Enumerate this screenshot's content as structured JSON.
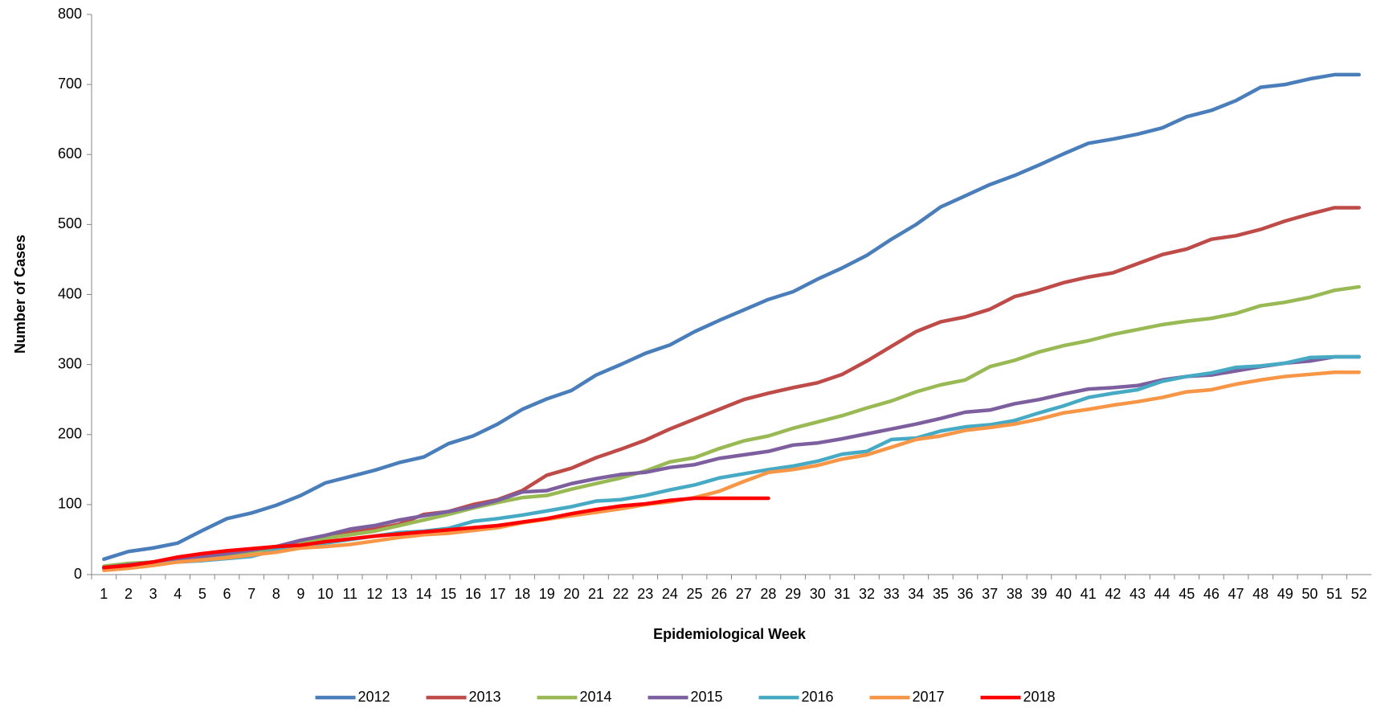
{
  "chart_data": {
    "type": "line",
    "x_label": "Epidemiological Week",
    "y_label": "Number of Cases",
    "categories": [
      "1",
      "2",
      "3",
      "4",
      "5",
      "6",
      "7",
      "8",
      "9",
      "10",
      "11",
      "12",
      "13",
      "14",
      "15",
      "16",
      "17",
      "18",
      "19",
      "20",
      "21",
      "22",
      "23",
      "24",
      "25",
      "26",
      "27",
      "28",
      "29",
      "30",
      "31",
      "32",
      "33",
      "34",
      "35",
      "36",
      "37",
      "38",
      "39",
      "40",
      "41",
      "42",
      "43",
      "44",
      "45",
      "46",
      "47",
      "48",
      "49",
      "50",
      "51",
      "52"
    ],
    "ylim": [
      0,
      800
    ],
    "yticks": [
      0,
      100,
      200,
      300,
      400,
      500,
      600,
      700,
      800
    ],
    "grid": false,
    "legend": "bottom",
    "series": [
      {
        "name": "2012",
        "color": "#4a7ebb",
        "values": [
          22,
          33,
          38,
          45,
          63,
          80,
          88,
          99,
          113,
          131,
          140,
          149,
          160,
          168,
          187,
          198,
          215,
          236,
          251,
          263,
          285,
          300,
          316,
          328,
          347,
          363,
          378,
          393,
          404,
          422,
          438,
          456,
          479,
          500,
          525,
          541,
          557,
          570,
          585,
          601,
          616,
          622,
          629,
          638,
          654,
          663,
          677,
          696,
          700,
          708,
          714,
          714
        ]
      },
      {
        "name": "2013",
        "color": "#be4b48",
        "values": [
          10,
          14,
          18,
          22,
          26,
          30,
          35,
          40,
          47,
          54,
          60,
          65,
          72,
          86,
          90,
          100,
          107,
          120,
          142,
          152,
          167,
          179,
          192,
          208,
          222,
          236,
          250,
          259,
          267,
          274,
          286,
          305,
          326,
          347,
          361,
          368,
          379,
          397,
          406,
          417,
          425,
          431,
          444,
          457,
          465,
          479,
          484,
          493,
          505,
          515,
          524,
          524
        ]
      },
      {
        "name": "2014",
        "color": "#98b954",
        "values": [
          12,
          16,
          18,
          20,
          24,
          28,
          33,
          38,
          45,
          52,
          57,
          62,
          70,
          78,
          86,
          95,
          103,
          110,
          113,
          122,
          130,
          138,
          148,
          161,
          167,
          180,
          191,
          198,
          209,
          218,
          227,
          238,
          248,
          261,
          271,
          278,
          297,
          306,
          318,
          327,
          334,
          343,
          350,
          357,
          362,
          366,
          373,
          384,
          389,
          396,
          406,
          411
        ]
      },
      {
        "name": "2015",
        "color": "#7d5fa0",
        "values": [
          10,
          14,
          18,
          22,
          26,
          30,
          35,
          40,
          49,
          56,
          65,
          70,
          78,
          84,
          90,
          97,
          106,
          118,
          120,
          130,
          137,
          143,
          146,
          153,
          157,
          166,
          171,
          176,
          185,
          188,
          194,
          201,
          208,
          215,
          223,
          232,
          235,
          244,
          250,
          258,
          265,
          267,
          270,
          278,
          283,
          285,
          291,
          297,
          302,
          305,
          311,
          311
        ]
      },
      {
        "name": "2016",
        "color": "#46aac5",
        "values": [
          8,
          10,
          14,
          18,
          20,
          23,
          26,
          35,
          40,
          45,
          50,
          55,
          60,
          62,
          66,
          76,
          80,
          85,
          91,
          97,
          105,
          107,
          113,
          121,
          128,
          138,
          144,
          150,
          155,
          162,
          172,
          176,
          193,
          195,
          205,
          211,
          214,
          220,
          231,
          241,
          253,
          259,
          264,
          276,
          283,
          288,
          296,
          298,
          302,
          310,
          311,
          311
        ]
      },
      {
        "name": "2017",
        "color": "#f79646",
        "values": [
          6,
          9,
          13,
          18,
          21,
          24,
          28,
          32,
          38,
          40,
          43,
          48,
          53,
          57,
          59,
          63,
          67,
          74,
          79,
          84,
          89,
          94,
          100,
          104,
          110,
          119,
          133,
          146,
          150,
          156,
          165,
          171,
          182,
          193,
          198,
          206,
          210,
          215,
          222,
          231,
          236,
          242,
          247,
          253,
          261,
          264,
          272,
          278,
          283,
          286,
          289,
          289
        ]
      },
      {
        "name": "2018",
        "color": "#ff0000",
        "values": [
          10,
          13,
          18,
          25,
          30,
          34,
          37,
          40,
          42,
          47,
          51,
          55,
          58,
          61,
          64,
          67,
          70,
          75,
          80,
          87,
          93,
          98,
          101,
          106,
          109,
          109,
          109,
          109,
          null,
          null,
          null,
          null,
          null,
          null,
          null,
          null,
          null,
          null,
          null,
          null,
          null,
          null,
          null,
          null,
          null,
          null,
          null,
          null,
          null,
          null,
          null,
          null
        ]
      }
    ]
  }
}
